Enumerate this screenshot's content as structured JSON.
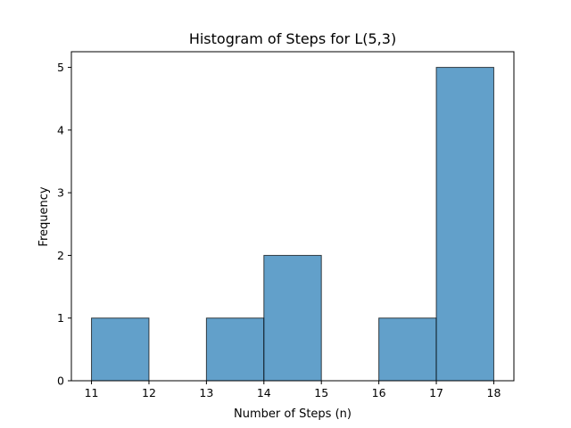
{
  "chart_data": {
    "type": "bar",
    "title": "Histogram of Steps for L(5,3)",
    "xlabel": "Number of Steps (n)",
    "ylabel": "Frequency",
    "bins": [
      {
        "start": 11,
        "end": 12,
        "count": 1
      },
      {
        "start": 12,
        "end": 13,
        "count": 0
      },
      {
        "start": 13,
        "end": 14,
        "count": 1
      },
      {
        "start": 14,
        "end": 15,
        "count": 2
      },
      {
        "start": 15,
        "end": 16,
        "count": 0
      },
      {
        "start": 16,
        "end": 17,
        "count": 1
      },
      {
        "start": 17,
        "end": 18,
        "count": 5
      }
    ],
    "xticks": [
      "11",
      "12",
      "13",
      "14",
      "15",
      "16",
      "17",
      "18"
    ],
    "yticks": [
      "0",
      "1",
      "2",
      "3",
      "4",
      "5"
    ],
    "xlim": [
      10.65,
      18.35
    ],
    "ylim": [
      0,
      5.25
    ],
    "grid": false,
    "colors": {
      "bar_fill": "#1f77b4",
      "bar_edge": "#000000"
    }
  }
}
